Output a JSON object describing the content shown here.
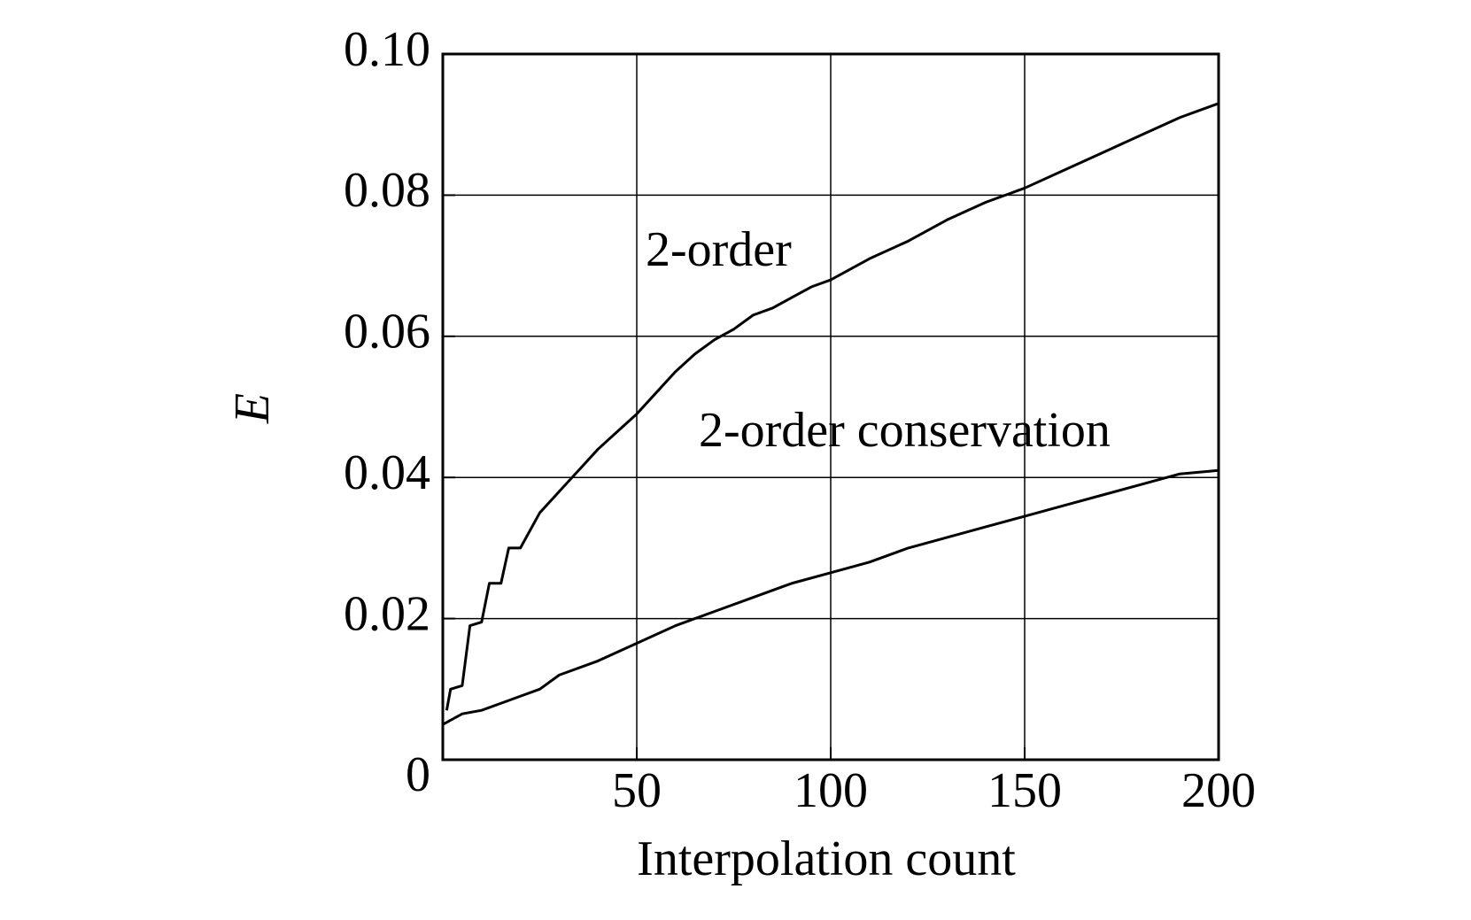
{
  "chart_data": {
    "type": "line",
    "xlabel": "Interpolation count",
    "ylabel": "E",
    "annotations": [
      "2-order",
      "2-order conservation"
    ],
    "xlim": [
      0,
      200
    ],
    "ylim": [
      0,
      0.1
    ],
    "xticks": [
      50,
      100,
      150,
      200
    ],
    "yticks": [
      0,
      0.02,
      0.04,
      0.06,
      0.08,
      {
        "value": 0.1,
        "label": "0.10"
      }
    ],
    "grid": true,
    "series": [
      {
        "name": "2-order",
        "color": "#000000",
        "x": [
          1,
          2,
          5,
          7,
          10,
          12,
          15,
          17,
          20,
          25,
          30,
          35,
          40,
          45,
          50,
          55,
          60,
          65,
          70,
          75,
          80,
          85,
          90,
          95,
          100,
          110,
          120,
          130,
          140,
          150,
          160,
          170,
          180,
          190,
          200
        ],
        "values": [
          0.007,
          0.01,
          0.0105,
          0.019,
          0.0195,
          0.025,
          0.025,
          0.03,
          0.03,
          0.035,
          0.038,
          0.041,
          0.044,
          0.0465,
          0.049,
          0.052,
          0.055,
          0.0575,
          0.0595,
          0.061,
          0.063,
          0.064,
          0.0655,
          0.067,
          0.068,
          0.071,
          0.0735,
          0.0765,
          0.079,
          0.081,
          0.0835,
          0.086,
          0.0885,
          0.091,
          0.093
        ]
      },
      {
        "name": "2-order conservation",
        "color": "#000000",
        "x": [
          0,
          5,
          10,
          15,
          20,
          25,
          30,
          40,
          50,
          60,
          70,
          80,
          90,
          100,
          110,
          120,
          130,
          140,
          150,
          160,
          170,
          180,
          190,
          200
        ],
        "values": [
          0.005,
          0.0065,
          0.007,
          0.008,
          0.009,
          0.01,
          0.012,
          0.014,
          0.0165,
          0.019,
          0.021,
          0.023,
          0.025,
          0.0265,
          0.028,
          0.03,
          0.0315,
          0.033,
          0.0345,
          0.036,
          0.0375,
          0.039,
          0.0405,
          0.041
        ]
      }
    ]
  }
}
